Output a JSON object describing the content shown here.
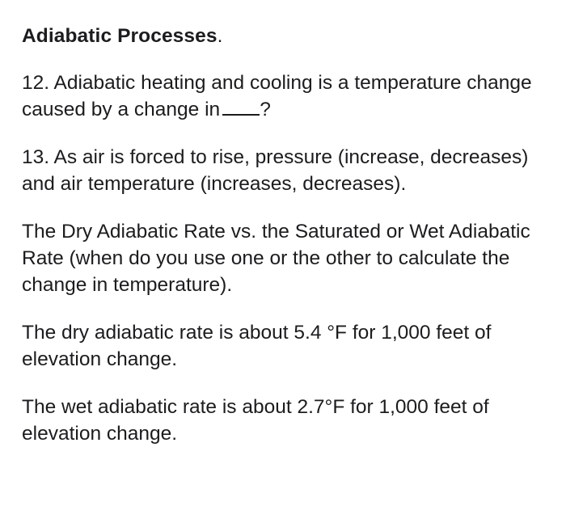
{
  "title": {
    "text": "Adiabatic Processes",
    "trailing": "."
  },
  "q12": {
    "text": "12. Adiabatic heating and cooling is a temperature change caused by a change in",
    "blank": "____",
    "end": "?"
  },
  "q13": {
    "text": "13. As air is forced to rise, pressure (increase, decreases) and air temperature (increases, decreases)."
  },
  "rates_intro": {
    "text": "The Dry Adiabatic Rate vs. the Saturated or Wet Adiabatic Rate (when do you use one or the other to calculate the change in temperature)."
  },
  "dry_rate": {
    "text": "The dry adiabatic rate is about  5.4 °F for 1,000 feet of elevation change."
  },
  "wet_rate": {
    "text": "The wet adiabatic rate is about 2.7°F for 1,000 feet of elevation change."
  }
}
